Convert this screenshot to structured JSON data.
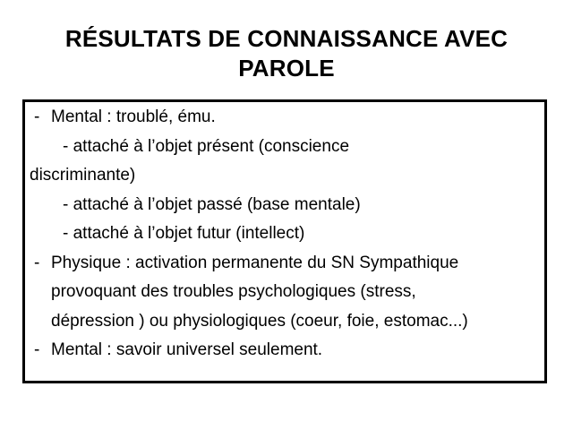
{
  "title": {
    "lines": [
      "RÉSULTATS DE CONNAISSANCE AVEC",
      "PAROLE"
    ]
  },
  "body": {
    "paragraphs": [
      {
        "level": 1,
        "bullet": "-",
        "lines": [
          "Mental : troublé, ému."
        ]
      },
      {
        "level": 2,
        "lines": [
          "- attaché à l’objet présent (conscience",
          "discriminante)"
        ]
      },
      {
        "level": 2,
        "lines": [
          "- attaché à l’objet passé (base mentale)"
        ]
      },
      {
        "level": 2,
        "lines": [
          "- attaché à l’objet futur (intellect)"
        ]
      },
      {
        "level": 1,
        "bullet": "-",
        "lines": [
          "Physique : activation permanente du SN Sympathique",
          "provoquant des troubles psychologiques (stress,",
          "dépression ) ou physiologiques (coeur, foie, estomac...)"
        ]
      },
      {
        "level": 1,
        "bullet": "-",
        "lines": [
          "Mental : savoir universel seulement."
        ]
      }
    ]
  },
  "colors": {
    "text": "#000000",
    "background": "#ffffff",
    "box_border": "#000000"
  }
}
